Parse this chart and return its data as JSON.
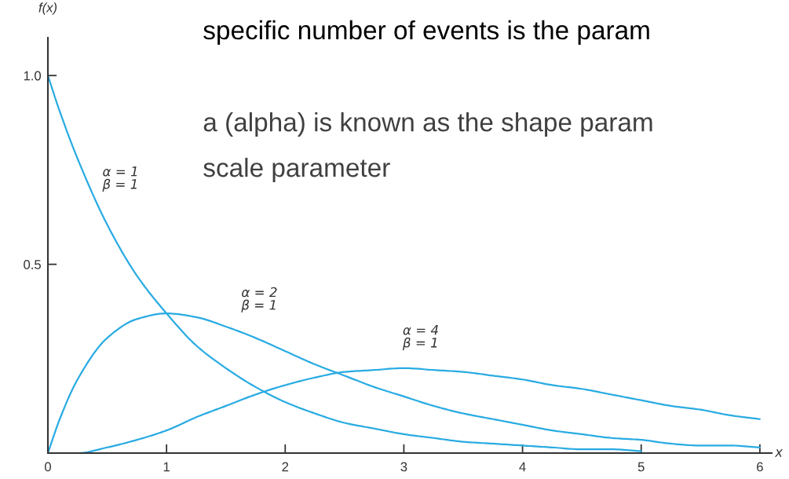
{
  "chart_data": {
    "type": "line",
    "xlabel": "x",
    "ylabel": "f(x)",
    "annotations": [
      "specific number of events is the param",
      "a (alpha) is known as the shape param",
      "scale parameter"
    ],
    "xlim": [
      0,
      6.1
    ],
    "ylim": [
      0,
      1.1
    ],
    "xticks": [
      0,
      1,
      2,
      3,
      4,
      5,
      6
    ],
    "yticks": [
      {
        "value": 0.5,
        "label": "0.5"
      },
      {
        "value": 1.0,
        "label": "1.0"
      }
    ],
    "grid": false,
    "line_style": "solid",
    "series": [
      {
        "name": "α = 1\nβ = 1",
        "color": "#29abe2",
        "x": [
          0,
          0.1,
          0.25,
          0.5,
          0.75,
          1,
          1.25,
          1.5,
          1.75,
          2,
          2.25,
          2.5,
          2.75,
          3,
          3.25,
          3.5,
          3.75,
          4,
          4.25,
          4.5,
          4.75,
          5
        ],
        "values": [
          1.0,
          0.905,
          0.78,
          0.605,
          0.47,
          0.37,
          0.285,
          0.225,
          0.175,
          0.135,
          0.105,
          0.08,
          0.065,
          0.05,
          0.04,
          0.03,
          0.025,
          0.02,
          0.015,
          0.01,
          0.01,
          0.005
        ]
      },
      {
        "name": "α = 2\nβ = 1",
        "color": "#29abe2",
        "x": [
          0,
          0.1,
          0.25,
          0.5,
          0.75,
          1,
          1.25,
          1.5,
          1.75,
          2,
          2.25,
          2.5,
          2.75,
          3,
          3.25,
          3.5,
          3.75,
          4,
          4.25,
          4.5,
          4.75,
          5,
          5.25,
          5.5,
          5.75,
          6
        ],
        "values": [
          0,
          0.09,
          0.195,
          0.305,
          0.355,
          0.37,
          0.36,
          0.335,
          0.305,
          0.27,
          0.235,
          0.205,
          0.175,
          0.15,
          0.125,
          0.105,
          0.09,
          0.075,
          0.06,
          0.05,
          0.04,
          0.035,
          0.025,
          0.02,
          0.02,
          0.015
        ]
      },
      {
        "name": "α = 4\nβ = 1",
        "color": "#29abe2",
        "x": [
          0,
          0.25,
          0.5,
          0.75,
          1,
          1.25,
          1.5,
          1.75,
          2,
          2.25,
          2.5,
          2.75,
          3,
          3.25,
          3.5,
          3.75,
          4,
          4.25,
          4.5,
          4.75,
          5,
          5.25,
          5.5,
          5.75,
          6
        ],
        "values": [
          0,
          0,
          0.015,
          0.035,
          0.06,
          0.095,
          0.125,
          0.155,
          0.18,
          0.2,
          0.215,
          0.22,
          0.225,
          0.22,
          0.215,
          0.205,
          0.195,
          0.18,
          0.17,
          0.155,
          0.14,
          0.125,
          0.115,
          0.1,
          0.09
        ]
      }
    ]
  }
}
